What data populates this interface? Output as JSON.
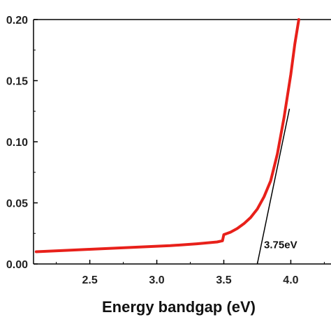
{
  "chart_data": {
    "type": "line",
    "title": "",
    "xlabel": "Energy bandgap  (eV)",
    "ylabel": "",
    "xlim": [
      2.08,
      4.3
    ],
    "ylim": [
      0.0,
      0.2
    ],
    "x_ticks": [
      2.5,
      3.0,
      3.5,
      4.0
    ],
    "x_tick_labels": [
      "2.5",
      "3.0",
      "3.5",
      "4.0"
    ],
    "y_ticks": [
      0.0,
      0.05,
      0.1,
      0.15,
      0.2
    ],
    "y_tick_labels": [
      "0.00",
      "0.05",
      "0.10",
      "0.15",
      "0.20"
    ],
    "grid": false,
    "series": [
      {
        "color": "#e8201a",
        "x": [
          2.1,
          2.3,
          2.5,
          2.7,
          2.9,
          3.1,
          3.3,
          3.45,
          3.49,
          3.5,
          3.55,
          3.6,
          3.65,
          3.7,
          3.75,
          3.8,
          3.85,
          3.9,
          3.95,
          4.0,
          4.03,
          4.06
        ],
        "y": [
          0.01,
          0.011,
          0.012,
          0.013,
          0.014,
          0.015,
          0.0165,
          0.018,
          0.019,
          0.024,
          0.026,
          0.029,
          0.033,
          0.038,
          0.045,
          0.055,
          0.068,
          0.09,
          0.12,
          0.155,
          0.18,
          0.2
        ]
      }
    ],
    "tangent_line": {
      "color": "#000000",
      "x": [
        3.75,
        3.99
      ],
      "y": [
        0.0,
        0.127
      ]
    },
    "annotations": [
      {
        "text": "3.75eV",
        "x": 3.8,
        "y": 0.013
      }
    ]
  }
}
